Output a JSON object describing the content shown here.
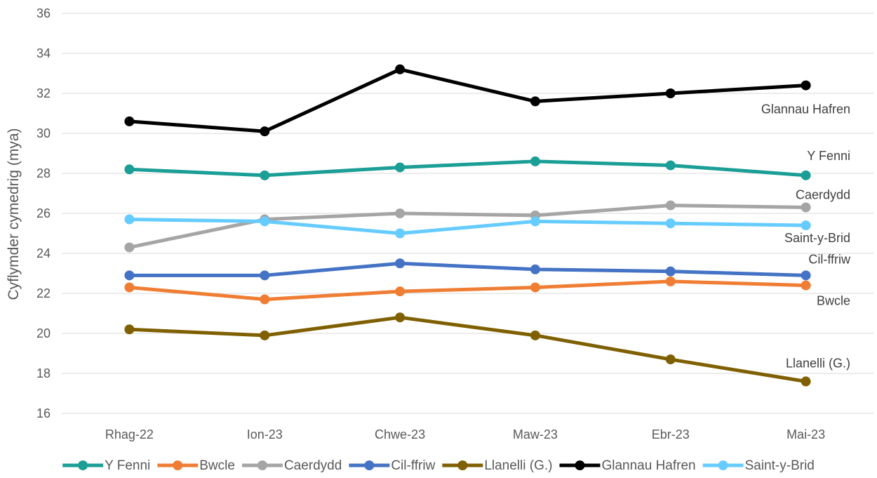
{
  "chart_data": {
    "type": "line",
    "title": "",
    "xlabel": "",
    "ylabel": "Cyflymder cymedrig (mya)",
    "ylim": [
      16,
      36
    ],
    "yticks": [
      16,
      18,
      20,
      22,
      24,
      26,
      28,
      30,
      32,
      34,
      36
    ],
    "grid": true,
    "legend_position": "bottom",
    "categories": [
      "Rhag-22",
      "Ion-23",
      "Chwe-23",
      "Maw-23",
      "Ebr-23",
      "Mai-23"
    ],
    "series": [
      {
        "name": "Y Fenni",
        "color": "#1a9e96",
        "values": [
          28.2,
          27.9,
          28.3,
          28.6,
          28.4,
          27.9
        ]
      },
      {
        "name": "Bwcle",
        "color": "#ef7d33",
        "values": [
          22.3,
          21.7,
          22.1,
          22.3,
          22.6,
          22.4
        ]
      },
      {
        "name": "Caerdydd",
        "color": "#a5a5a5",
        "values": [
          24.3,
          25.7,
          26.0,
          25.9,
          26.4,
          26.3
        ]
      },
      {
        "name": "Cil-ffriw",
        "color": "#4472c4",
        "values": [
          22.9,
          22.9,
          23.5,
          23.2,
          23.1,
          22.9
        ]
      },
      {
        "name": "Llanelli (G.)",
        "color": "#7f6000",
        "values": [
          20.2,
          19.9,
          20.8,
          19.9,
          18.7,
          17.6
        ]
      },
      {
        "name": "Glannau Hafren",
        "color": "#000000",
        "values": [
          30.6,
          30.1,
          33.2,
          31.6,
          32.0,
          32.4
        ]
      },
      {
        "name": "Saint-y-Brid",
        "color": "#66ccff",
        "values": [
          25.7,
          25.6,
          25.0,
          25.6,
          25.5,
          25.4
        ]
      }
    ]
  }
}
